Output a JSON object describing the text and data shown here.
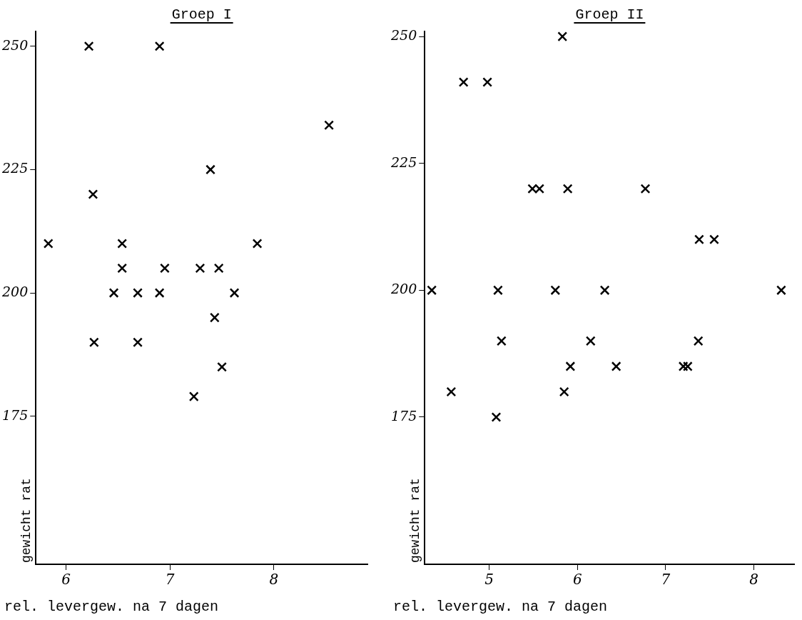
{
  "chart_data": [
    {
      "type": "scatter",
      "title": "Groep I",
      "xlabel": "rel. levergew. na 7 dagen",
      "ylabel": "gewicht rat",
      "xlim": [
        5.71,
        8.9
      ],
      "xticks": [
        6,
        7,
        8
      ],
      "ylim": [
        145,
        253
      ],
      "yticks": [
        175,
        200,
        225,
        250
      ],
      "grid": false,
      "legend": false,
      "marker": "cross",
      "series": [
        {
          "color": "#000000",
          "x": [
            6.22,
            6.9,
            8.53,
            7.39,
            6.26,
            5.83,
            6.54,
            7.84,
            6.54,
            6.95,
            7.29,
            7.47,
            6.46,
            6.69,
            6.9,
            7.62,
            7.43,
            6.27,
            6.69,
            7.5,
            7.23
          ],
          "values": [
            250,
            250,
            234,
            225,
            220,
            210,
            210,
            210,
            205,
            205,
            205,
            205,
            200,
            200,
            200,
            200,
            195,
            190,
            190,
            185,
            179
          ]
        }
      ]
    },
    {
      "type": "scatter",
      "title": "Groep II",
      "xlabel": "rel. levergew. na 7 dagen",
      "ylabel": "gewicht rat",
      "xlim": [
        4.27,
        8.46
      ],
      "xticks": [
        5,
        6,
        7,
        8
      ],
      "ylim": [
        146,
        251
      ],
      "yticks": [
        175,
        200,
        225,
        250
      ],
      "grid": false,
      "legend": false,
      "marker": "cross",
      "series": [
        {
          "color": "#000000",
          "x": [
            5.83,
            4.71,
            4.98,
            5.49,
            5.57,
            5.89,
            6.77,
            7.38,
            7.55,
            4.35,
            5.1,
            5.75,
            6.31,
            8.31,
            5.14,
            6.15,
            7.37,
            5.92,
            6.44,
            7.2,
            7.25,
            4.57,
            5.85,
            5.08
          ],
          "values": [
            250,
            241,
            241,
            220,
            220,
            220,
            220,
            210,
            210,
            200,
            200,
            200,
            200,
            200,
            190,
            190,
            190,
            185,
            185,
            185,
            185,
            180,
            180,
            175
          ]
        }
      ]
    }
  ]
}
